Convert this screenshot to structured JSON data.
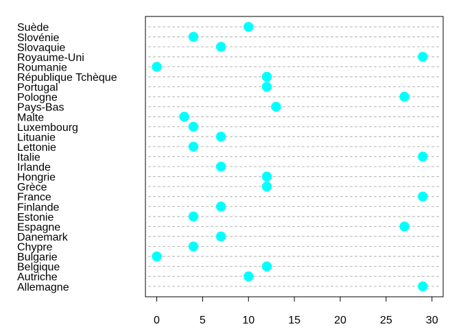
{
  "chart_data": {
    "type": "scatter",
    "subtype": "dotchart",
    "categories": [
      "Allemagne",
      "Autriche",
      "Belgique",
      "Bulgarie",
      "Chypre",
      "Danemark",
      "Espagne",
      "Estonie",
      "Finlande",
      "France",
      "Grèce",
      "Hongrie",
      "Irlande",
      "Italie",
      "Lettonie",
      "Lituanie",
      "Luxembourg",
      "Malte",
      "Pays-Bas",
      "Pologne",
      "Portugal",
      "République Tchèque",
      "Roumanie",
      "Royaume-Uni",
      "Slovaquie",
      "Slovénie",
      "Suède"
    ],
    "values": [
      29,
      10,
      12,
      0,
      4,
      7,
      27,
      4,
      7,
      29,
      12,
      12,
      7,
      29,
      4,
      7,
      4,
      3,
      13,
      27,
      12,
      12,
      0,
      29,
      7,
      4,
      10
    ],
    "category_order": "first category at bottom",
    "xlim": [
      0,
      30
    ],
    "xticks": [
      0,
      5,
      10,
      15,
      20,
      25,
      30
    ],
    "title": "",
    "xlabel": "",
    "ylabel": "",
    "grid": "dotted horizontal guide line per category",
    "legend": "none",
    "point_color": "#00FFFF",
    "guide_color": "#BEBEBE"
  }
}
